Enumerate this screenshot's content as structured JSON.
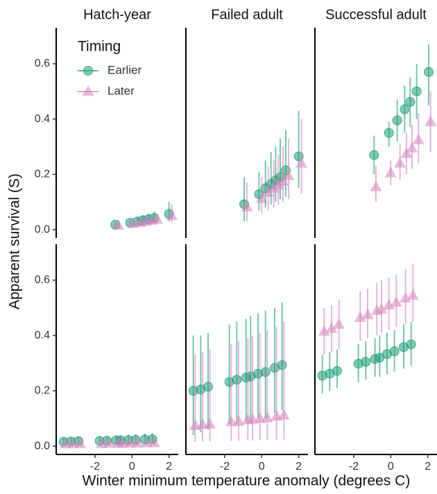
{
  "chart_data": {
    "type": "scatter",
    "columns": [
      "Hatch-year",
      "Failed adult",
      "Successful adult"
    ],
    "x_label": "Winter minimum temperature anomaly (degrees C)",
    "y_label": "Apparent survival (S)",
    "legend": {
      "title": "Timing",
      "series": [
        {
          "name": "Earlier",
          "color": "#1b9e77",
          "marker": "circle"
        },
        {
          "name": "Later",
          "color": "#d584bb",
          "marker": "triangle"
        }
      ]
    },
    "xlim": [
      -4.1,
      2.5
    ],
    "xticks": [
      -2,
      0,
      2
    ],
    "ylim": [
      -0.03,
      0.73
    ],
    "yticks": [
      {
        "value": 0,
        "label": "0.0"
      },
      0.2,
      0.4,
      0.6
    ],
    "panels": [
      {
        "series": [
          {
            "x": [
              -0.9,
              -0.1,
              0.3,
              0.6,
              0.9,
              1.2,
              2.0
            ],
            "values": [
              0.018,
              0.025,
              0.03,
              0.034,
              0.038,
              0.042,
              0.057
            ],
            "lower": [
              0.012,
              0.017,
              0.019,
              0.021,
              0.023,
              0.024,
              0.03
            ],
            "upper": [
              0.026,
              0.035,
              0.045,
              0.052,
              0.058,
              0.065,
              0.1
            ]
          },
          {
            "x": [
              -0.75,
              0.05,
              0.45,
              0.75,
              1.05,
              1.35,
              2.15
            ],
            "values": [
              0.016,
              0.022,
              0.026,
              0.03,
              0.033,
              0.037,
              0.05
            ],
            "lower": [
              0.01,
              0.014,
              0.016,
              0.018,
              0.02,
              0.021,
              0.025
            ],
            "upper": [
              0.024,
              0.032,
              0.04,
              0.047,
              0.052,
              0.058,
              0.09
            ]
          }
        ]
      },
      {
        "series": [
          {
            "x": [
              -0.95,
              -0.15,
              0.2,
              0.5,
              0.75,
              1.0,
              1.3,
              2.0
            ],
            "values": [
              0.092,
              0.128,
              0.15,
              0.165,
              0.178,
              0.19,
              0.215,
              0.265
            ],
            "lower": [
              0.03,
              0.07,
              0.08,
              0.09,
              0.1,
              0.11,
              0.12,
              0.15
            ],
            "upper": [
              0.19,
              0.21,
              0.25,
              0.28,
              0.3,
              0.33,
              0.36,
              0.43
            ]
          },
          {
            "x": [
              -0.8,
              0,
              0.35,
              0.65,
              0.9,
              1.15,
              1.45,
              2.15
            ],
            "values": [
              0.082,
              0.112,
              0.135,
              0.15,
              0.162,
              0.175,
              0.195,
              0.24
            ],
            "lower": [
              0.03,
              0.06,
              0.07,
              0.08,
              0.09,
              0.1,
              0.11,
              0.13
            ],
            "upper": [
              0.17,
              0.19,
              0.23,
              0.25,
              0.27,
              0.3,
              0.33,
              0.4
            ]
          }
        ]
      },
      {
        "series": [
          {
            "x": [
              -0.9,
              -0.1,
              0.35,
              0.75,
              1.05,
              1.4,
              2.05
            ],
            "values": [
              0.27,
              0.35,
              0.395,
              0.435,
              0.462,
              0.5,
              0.57
            ],
            "lower": [
              0.2,
              0.3,
              0.32,
              0.35,
              0.37,
              0.4,
              0.45
            ],
            "upper": [
              0.34,
              0.39,
              0.47,
              0.52,
              0.55,
              0.6,
              0.67
            ]
          },
          {
            "x": [
              -0.8,
              0,
              0.5,
              0.85,
              1.15,
              1.5,
              2.15
            ],
            "values": [
              0.155,
              0.205,
              0.24,
              0.275,
              0.295,
              0.325,
              0.39
            ],
            "lower": [
              0.1,
              0.16,
              0.18,
              0.2,
              0.22,
              0.24,
              0.28
            ],
            "upper": [
              0.23,
              0.25,
              0.31,
              0.35,
              0.38,
              0.42,
              0.5
            ]
          }
        ]
      },
      {
        "series": [
          {
            "x": [
              -3.7,
              -3.3,
              -2.9,
              -1.75,
              -1.35,
              -0.85,
              -0.6,
              -0.2,
              0.2,
              0.7,
              1.1
            ],
            "values": [
              0.016,
              0.017,
              0.018,
              0.019,
              0.02,
              0.021,
              0.021,
              0.022,
              0.023,
              0.024,
              0.025
            ],
            "lower": [
              0.006,
              0.006,
              0.007,
              0.007,
              0.007,
              0.008,
              0.008,
              0.008,
              0.008,
              0.009,
              0.009
            ],
            "upper": [
              0.03,
              0.031,
              0.033,
              0.035,
              0.037,
              0.039,
              0.04,
              0.041,
              0.043,
              0.046,
              0.048
            ]
          },
          {
            "x": [
              -3.6,
              -3.2,
              -2.8,
              -1.65,
              -1.25,
              -0.75,
              -0.5,
              -0.1,
              0.3,
              0.8,
              1.2
            ],
            "values": [
              0.008,
              0.008,
              0.009,
              0.009,
              0.01,
              0.01,
              0.01,
              0.011,
              0.011,
              0.012,
              0.012
            ],
            "lower": [
              0.002,
              0.002,
              0.002,
              0.002,
              0.002,
              0.002,
              0.002,
              0.002,
              0.002,
              0.002,
              0.002
            ],
            "upper": [
              0.022,
              0.023,
              0.024,
              0.025,
              0.026,
              0.027,
              0.028,
              0.029,
              0.03,
              0.031,
              0.033
            ]
          }
        ]
      },
      {
        "series": [
          {
            "x": [
              -3.7,
              -3.3,
              -2.9,
              -1.75,
              -1.35,
              -0.85,
              -0.6,
              -0.2,
              0.2,
              0.7,
              1.1
            ],
            "values": [
              0.2,
              0.205,
              0.215,
              0.232,
              0.24,
              0.248,
              0.252,
              0.262,
              0.268,
              0.283,
              0.293
            ],
            "lower": [
              0.04,
              0.05,
              0.06,
              0.08,
              0.08,
              0.09,
              0.09,
              0.1,
              0.1,
              0.12,
              0.13
            ],
            "upper": [
              0.4,
              0.4,
              0.41,
              0.44,
              0.45,
              0.46,
              0.47,
              0.48,
              0.49,
              0.5,
              0.52
            ]
          },
          {
            "x": [
              -3.6,
              -3.2,
              -2.8,
              -1.65,
              -1.25,
              -0.75,
              -0.5,
              -0.1,
              0.3,
              0.8,
              1.2
            ],
            "values": [
              0.075,
              0.078,
              0.08,
              0.088,
              0.09,
              0.095,
              0.097,
              0.1,
              0.102,
              0.108,
              0.112
            ],
            "lower": [
              0.015,
              0.016,
              0.017,
              0.018,
              0.019,
              0.02,
              0.02,
              0.021,
              0.022,
              0.023,
              0.024
            ],
            "upper": [
              0.33,
              0.34,
              0.35,
              0.37,
              0.38,
              0.39,
              0.4,
              0.41,
              0.42,
              0.43,
              0.45
            ]
          }
        ]
      },
      {
        "series": [
          {
            "x": [
              -3.7,
              -3.3,
              -2.9,
              -1.75,
              -1.35,
              -0.85,
              -0.6,
              -0.2,
              0.2,
              0.7,
              1.1
            ],
            "values": [
              0.255,
              0.262,
              0.272,
              0.298,
              0.305,
              0.315,
              0.32,
              0.333,
              0.343,
              0.358,
              0.368
            ],
            "lower": [
              0.19,
              0.2,
              0.21,
              0.23,
              0.24,
              0.25,
              0.25,
              0.26,
              0.27,
              0.28,
              0.29
            ],
            "upper": [
              0.33,
              0.34,
              0.35,
              0.37,
              0.38,
              0.39,
              0.4,
              0.41,
              0.42,
              0.44,
              0.45
            ]
          },
          {
            "x": [
              -3.6,
              -3.2,
              -2.8,
              -1.65,
              -1.25,
              -0.75,
              -0.5,
              -0.1,
              0.3,
              0.8,
              1.2
            ],
            "values": [
              0.415,
              0.425,
              0.44,
              0.465,
              0.475,
              0.49,
              0.495,
              0.51,
              0.52,
              0.535,
              0.545
            ],
            "lower": [
              0.33,
              0.34,
              0.35,
              0.38,
              0.39,
              0.4,
              0.41,
              0.42,
              0.43,
              0.44,
              0.45
            ],
            "upper": [
              0.5,
              0.51,
              0.53,
              0.56,
              0.57,
              0.59,
              0.6,
              0.61,
              0.62,
              0.64,
              0.66
            ]
          }
        ]
      }
    ]
  }
}
